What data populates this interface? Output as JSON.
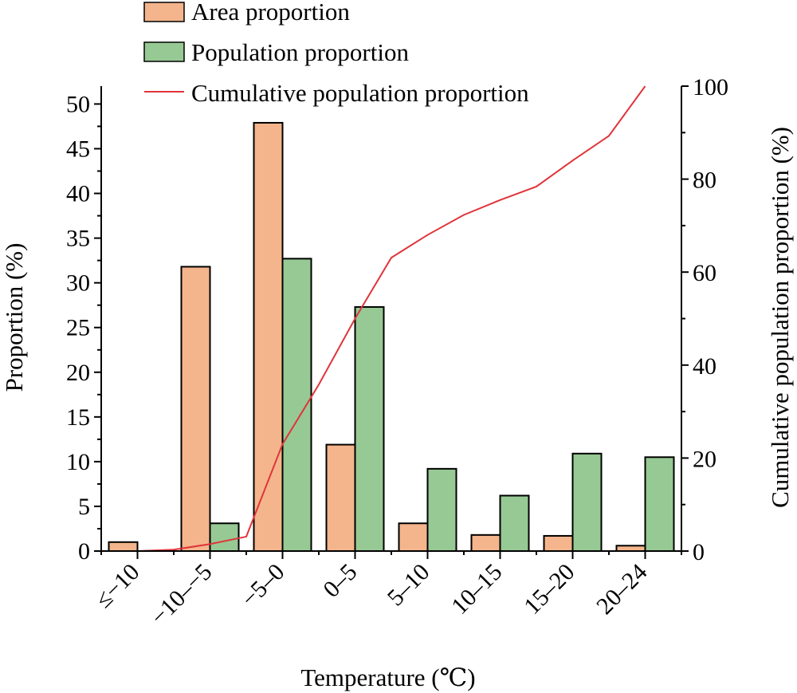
{
  "colors": {
    "area": "#f4b58c",
    "population": "#97c994",
    "cumulative": "#e0343a"
  },
  "chart_data": {
    "type": "bar",
    "categories": [
      "≤−10",
      "−10–−5",
      "−5–0",
      "0–5",
      "5–10",
      "10–15",
      "15–20",
      "20–24"
    ],
    "series": [
      {
        "name": "Area proportion",
        "kind": "bar",
        "axis": "left",
        "values": [
          1.0,
          31.8,
          47.9,
          11.9,
          3.1,
          1.8,
          1.7,
          0.6
        ]
      },
      {
        "name": "Population proportion",
        "kind": "bar",
        "axis": "left",
        "values": [
          0.0,
          3.1,
          32.7,
          27.3,
          9.2,
          6.2,
          10.9,
          10.5
        ]
      },
      {
        "name": "Cumulative population proportion",
        "kind": "line",
        "axis": "right",
        "x": [
          -0.5,
          0.0,
          0.5,
          1.0,
          1.5,
          2.0,
          2.5,
          3.0,
          3.5,
          4.0,
          4.5,
          5.0,
          5.5,
          6.0,
          6.5,
          7.0
        ],
        "values": [
          0,
          0,
          0.3,
          1.5,
          3.1,
          23,
          35.8,
          50,
          63.1,
          68,
          72.3,
          75.5,
          78.4,
          84,
          89.3,
          100
        ]
      }
    ],
    "xlabel": "Temperature (℃)",
    "ylabel": "Proportion (%)",
    "y2label": "Cumulative population proportion (%)",
    "ylim": [
      0,
      52
    ],
    "y2lim": [
      0,
      100
    ],
    "yticks": [
      "0",
      "5",
      "10",
      "15",
      "20",
      "25",
      "30",
      "35",
      "40",
      "45",
      "50"
    ],
    "y2ticks": [
      "0",
      "20",
      "40",
      "60",
      "80",
      "100"
    ],
    "grid": false,
    "legend_position": "top"
  }
}
